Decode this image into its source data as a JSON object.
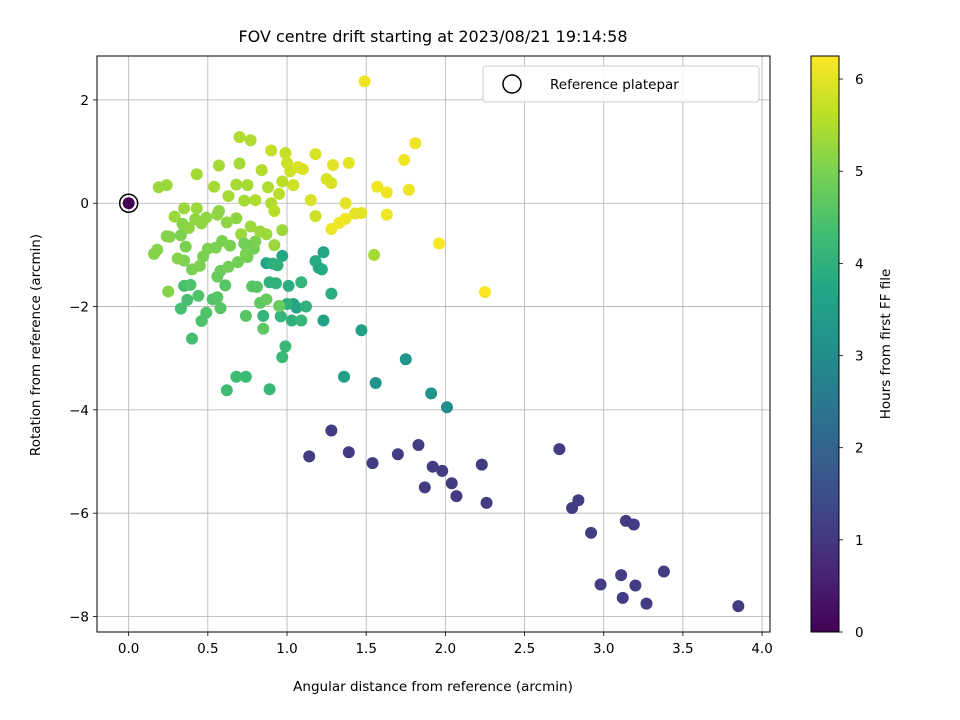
{
  "chart_data": {
    "type": "scatter",
    "title": "FOV centre drift starting at 2023/08/21 19:14:58",
    "xlabel": "Angular distance from reference (arcmin)",
    "ylabel": "Rotation from reference (arcmin)",
    "xlim": [
      -0.2,
      4.05
    ],
    "ylim": [
      -8.3,
      2.85
    ],
    "xticks": [
      "0.0",
      "0.5",
      "1.0",
      "1.5",
      "2.0",
      "2.5",
      "3.0",
      "3.5",
      "4.0"
    ],
    "yticks": [
      "2",
      "0",
      "−2",
      "−4",
      "−6",
      "−8"
    ],
    "grid": true,
    "legend": {
      "position": "top-right",
      "entries": [
        "Reference platepar"
      ]
    },
    "colorbar": {
      "label": "Hours from first FF file",
      "colormap": "viridis",
      "range": [
        0,
        6.25
      ],
      "ticks": [
        "0",
        "1",
        "2",
        "3",
        "4",
        "5",
        "6"
      ]
    },
    "reference_point": {
      "x": 0.0,
      "y": 0.0,
      "hours": 0.0
    },
    "points": [
      [
        1.14,
        -4.9,
        1.1
      ],
      [
        1.28,
        -4.4,
        1.1
      ],
      [
        1.39,
        -4.82,
        1.1
      ],
      [
        1.54,
        -5.03,
        1.1
      ],
      [
        1.7,
        -4.86,
        1.1
      ],
      [
        1.83,
        -4.68,
        1.1
      ],
      [
        1.87,
        -5.5,
        1.1
      ],
      [
        1.92,
        -5.1,
        1.1
      ],
      [
        1.98,
        -5.18,
        1.1
      ],
      [
        2.04,
        -5.42,
        1.1
      ],
      [
        2.07,
        -5.67,
        1.1
      ],
      [
        2.23,
        -5.06,
        1.1
      ],
      [
        2.26,
        -5.8,
        1.1
      ],
      [
        2.72,
        -4.76,
        1.1
      ],
      [
        2.8,
        -5.9,
        1.1
      ],
      [
        2.84,
        -5.75,
        1.1
      ],
      [
        2.92,
        -6.38,
        1.1
      ],
      [
        2.98,
        -7.38,
        1.1
      ],
      [
        3.11,
        -7.2,
        1.1
      ],
      [
        3.12,
        -7.64,
        1.1
      ],
      [
        3.14,
        -6.15,
        1.1
      ],
      [
        3.19,
        -6.22,
        1.1
      ],
      [
        3.2,
        -7.4,
        1.1
      ],
      [
        3.27,
        -7.75,
        1.1
      ],
      [
        3.38,
        -7.13,
        1.1
      ],
      [
        3.85,
        -7.8,
        1.1
      ],
      [
        2.01,
        -3.95,
        3.0
      ],
      [
        1.91,
        -3.68,
        3.2
      ],
      [
        1.75,
        -3.02,
        3.2
      ],
      [
        1.56,
        -3.48,
        3.2
      ],
      [
        1.47,
        -2.46,
        3.5
      ],
      [
        1.36,
        -3.36,
        3.5
      ],
      [
        1.23,
        -2.27,
        3.6
      ],
      [
        1.04,
        -1.95,
        3.6
      ],
      [
        1.06,
        -2.02,
        3.7
      ],
      [
        0.87,
        -1.16,
        3.7
      ],
      [
        0.97,
        -1.02,
        3.7
      ],
      [
        1.23,
        -0.95,
        3.7
      ],
      [
        1.18,
        -1.12,
        3.8
      ],
      [
        1.2,
        -1.25,
        3.8
      ],
      [
        1.28,
        -1.75,
        3.9
      ],
      [
        0.91,
        -1.17,
        3.9
      ],
      [
        0.94,
        -1.2,
        4.0
      ],
      [
        0.89,
        -1.53,
        4.0
      ],
      [
        0.93,
        -1.55,
        4.0
      ],
      [
        1.0,
        -1.95,
        4.0
      ],
      [
        1.03,
        -2.27,
        4.0
      ],
      [
        1.09,
        -2.27,
        4.1
      ],
      [
        1.12,
        -2.0,
        4.0
      ],
      [
        1.09,
        -1.53,
        4.1
      ],
      [
        0.85,
        -2.18,
        4.1
      ],
      [
        0.96,
        -2.19,
        4.1
      ],
      [
        0.99,
        -2.77,
        4.2
      ],
      [
        0.97,
        -2.98,
        4.2
      ],
      [
        0.89,
        -3.6,
        4.2
      ],
      [
        0.74,
        -3.36,
        4.2
      ],
      [
        0.68,
        -3.36,
        4.3
      ],
      [
        0.62,
        -3.62,
        4.3
      ],
      [
        0.4,
        -2.62,
        4.4
      ],
      [
        0.33,
        -2.04,
        4.4
      ],
      [
        0.37,
        -1.87,
        4.4
      ],
      [
        0.35,
        -1.6,
        4.4
      ],
      [
        0.39,
        -1.58,
        4.5
      ],
      [
        0.44,
        -1.79,
        4.5
      ],
      [
        0.49,
        -2.12,
        4.5
      ],
      [
        0.46,
        -2.28,
        4.5
      ],
      [
        0.53,
        -1.86,
        4.5
      ],
      [
        0.56,
        -1.82,
        4.6
      ],
      [
        0.58,
        -2.03,
        4.6
      ],
      [
        0.74,
        -2.18,
        4.6
      ],
      [
        0.61,
        -1.59,
        4.6
      ],
      [
        0.78,
        -1.61,
        4.6
      ],
      [
        0.83,
        -1.93,
        4.7
      ],
      [
        0.85,
        -2.43,
        4.7
      ],
      [
        0.87,
        -1.86,
        4.8
      ],
      [
        0.95,
        -1.99,
        4.8
      ],
      [
        0.56,
        -1.42,
        4.8
      ],
      [
        0.58,
        -1.31,
        4.8
      ],
      [
        0.63,
        -1.23,
        4.9
      ],
      [
        0.69,
        -1.14,
        4.9
      ],
      [
        0.75,
        -1.04,
        4.9
      ],
      [
        0.79,
        -0.88,
        4.9
      ],
      [
        0.8,
        -0.74,
        5.0
      ],
      [
        0.74,
        -0.98,
        5.0
      ],
      [
        0.64,
        -0.82,
        5.0
      ],
      [
        0.59,
        -0.73,
        5.0
      ],
      [
        0.55,
        -0.86,
        5.0
      ],
      [
        0.5,
        -0.88,
        5.0
      ],
      [
        0.47,
        -1.03,
        5.0
      ],
      [
        0.45,
        -1.21,
        5.0
      ],
      [
        0.4,
        -1.28,
        5.0
      ],
      [
        0.35,
        -1.11,
        5.0
      ],
      [
        0.36,
        -0.84,
        5.0
      ],
      [
        0.33,
        -0.62,
        5.0
      ],
      [
        0.26,
        -0.65,
        5.1
      ],
      [
        0.24,
        -0.64,
        5.1
      ],
      [
        0.16,
        -0.98,
        5.1
      ],
      [
        0.18,
        -0.9,
        5.1
      ],
      [
        0.25,
        -1.71,
        5.1
      ],
      [
        0.31,
        -1.07,
        5.1
      ],
      [
        0.34,
        -0.4,
        5.1
      ],
      [
        0.38,
        -0.48,
        5.2
      ],
      [
        0.42,
        -0.31,
        5.2
      ],
      [
        0.46,
        -0.39,
        5.2
      ],
      [
        0.49,
        -0.28,
        5.2
      ],
      [
        0.56,
        -0.22,
        5.2
      ],
      [
        0.57,
        -0.15,
        5.2
      ],
      [
        0.62,
        -0.37,
        5.2
      ],
      [
        0.68,
        -0.29,
        5.2
      ],
      [
        0.71,
        -0.6,
        5.3
      ],
      [
        0.77,
        -0.45,
        5.3
      ],
      [
        0.83,
        -0.55,
        5.3
      ],
      [
        0.87,
        -0.6,
        5.3
      ],
      [
        0.92,
        -0.81,
        5.3
      ],
      [
        0.35,
        -0.1,
        5.3
      ],
      [
        0.43,
        -0.1,
        5.3
      ],
      [
        0.29,
        -0.26,
        5.3
      ],
      [
        0.19,
        0.31,
        5.3
      ],
      [
        0.24,
        0.35,
        5.3
      ],
      [
        0.43,
        0.56,
        5.4
      ],
      [
        0.54,
        0.32,
        5.4
      ],
      [
        0.57,
        0.73,
        5.4
      ],
      [
        0.63,
        0.14,
        5.4
      ],
      [
        0.68,
        0.36,
        5.4
      ],
      [
        0.7,
        0.77,
        5.4
      ],
      [
        0.75,
        0.35,
        5.4
      ],
      [
        0.73,
        0.05,
        5.4
      ],
      [
        0.7,
        1.28,
        5.5
      ],
      [
        0.77,
        1.22,
        5.5
      ],
      [
        0.8,
        0.06,
        5.5
      ],
      [
        0.84,
        0.64,
        5.5
      ],
      [
        0.88,
        0.31,
        5.5
      ],
      [
        0.9,
        0.0,
        5.5
      ],
      [
        0.92,
        -0.15,
        5.6
      ],
      [
        0.95,
        0.18,
        5.6
      ],
      [
        0.97,
        0.42,
        5.6
      ],
      [
        0.9,
        1.02,
        5.7
      ],
      [
        0.99,
        0.97,
        5.7
      ],
      [
        1.0,
        0.78,
        5.8
      ],
      [
        1.02,
        0.62,
        5.8
      ],
      [
        1.04,
        0.35,
        5.8
      ],
      [
        1.07,
        0.7,
        5.9
      ],
      [
        1.1,
        0.66,
        5.9
      ],
      [
        1.15,
        0.06,
        5.9
      ],
      [
        1.18,
        -0.25,
        5.8
      ],
      [
        1.18,
        0.95,
        5.9
      ],
      [
        1.25,
        0.47,
        5.9
      ],
      [
        1.28,
        0.39,
        5.9
      ],
      [
        1.29,
        0.74,
        6.0
      ],
      [
        1.37,
        0.0,
        6.0
      ],
      [
        1.39,
        0.78,
        6.0
      ],
      [
        1.43,
        -0.2,
        6.0
      ],
      [
        1.47,
        -0.19,
        6.0
      ],
      [
        1.37,
        -0.3,
        6.1
      ],
      [
        1.33,
        -0.38,
        6.1
      ],
      [
        1.28,
        -0.5,
        6.1
      ],
      [
        1.49,
        2.36,
        6.1
      ],
      [
        1.57,
        0.32,
        6.1
      ],
      [
        1.63,
        0.21,
        6.1
      ],
      [
        1.63,
        -0.22,
        6.1
      ],
      [
        1.74,
        0.84,
        6.1
      ],
      [
        1.77,
        0.26,
        6.1
      ],
      [
        1.81,
        1.16,
        6.1
      ],
      [
        1.96,
        -0.78,
        6.2
      ],
      [
        2.25,
        -1.72,
        6.2
      ],
      [
        1.55,
        -1.0,
        5.4
      ],
      [
        1.22,
        -1.28,
        3.8
      ],
      [
        1.01,
        -1.6,
        3.9
      ],
      [
        0.81,
        -1.62,
        4.6
      ],
      [
        0.73,
        -0.78,
        4.9
      ],
      [
        0.97,
        -0.52,
        5.3
      ]
    ]
  }
}
